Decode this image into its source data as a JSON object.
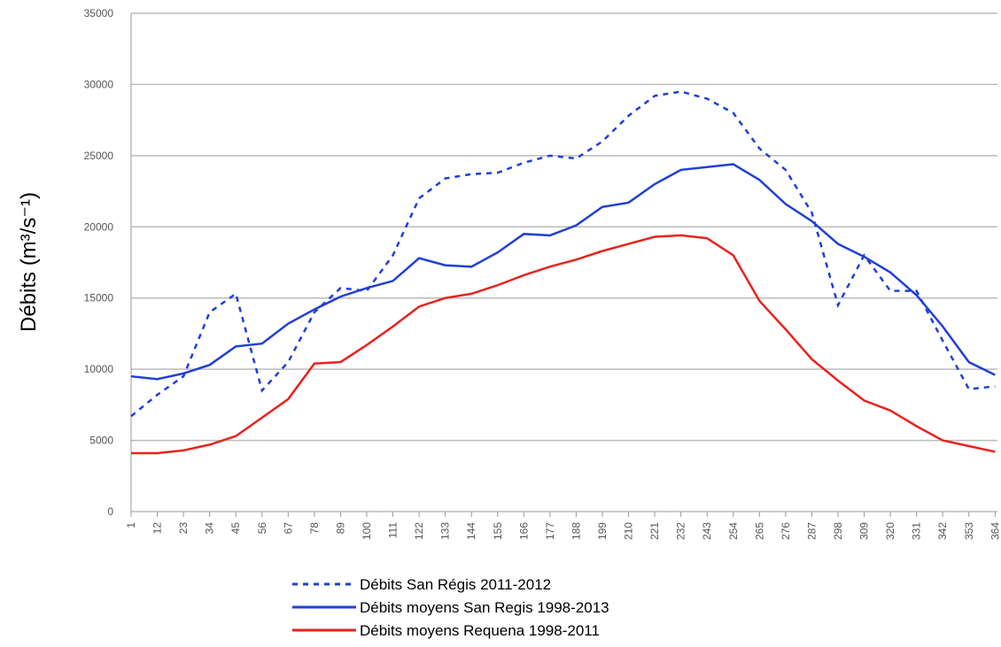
{
  "chart_data": {
    "type": "line",
    "y_label": "Débits (m³/s⁻¹)",
    "x": [
      1,
      12,
      23,
      34,
      45,
      56,
      67,
      78,
      89,
      100,
      111,
      122,
      133,
      144,
      155,
      166,
      177,
      188,
      199,
      210,
      221,
      232,
      243,
      254,
      265,
      276,
      287,
      298,
      309,
      320,
      331,
      342,
      353,
      364
    ],
    "series": [
      {
        "name": "Débits San Régis 2011-2012",
        "color": "#1f3fd6",
        "style": "dotted",
        "values": [
          6700,
          8200,
          9500,
          14000,
          15300,
          8500,
          10500,
          14000,
          15700,
          15500,
          18000,
          22000,
          23400,
          23700,
          23800,
          24500,
          25000,
          24800,
          26000,
          27800,
          29200,
          29500,
          29000,
          28000,
          25500,
          24000,
          21000,
          14500,
          18000,
          15500,
          15500,
          12000,
          8600,
          8800
        ]
      },
      {
        "name": "Débits moyens San Regis 1998-2013",
        "color": "#1f3fd6",
        "style": "solid",
        "values": [
          9500,
          9300,
          9700,
          10300,
          11600,
          11800,
          13200,
          14200,
          15100,
          15700,
          16200,
          17800,
          17300,
          17200,
          18200,
          19500,
          19400,
          20100,
          21400,
          21700,
          23000,
          24000,
          24200,
          24400,
          23300,
          21600,
          20400,
          18800,
          17900,
          16800,
          15200,
          13000,
          10500,
          9600
        ]
      },
      {
        "name": "Débits moyens Requena 1998-2011",
        "color": "#e8231e",
        "style": "solid",
        "values": [
          4100,
          4100,
          4300,
          4700,
          5300,
          6600,
          7900,
          10400,
          10500,
          11700,
          13000,
          14400,
          15000,
          15300,
          15900,
          16600,
          17200,
          17700,
          18300,
          18800,
          19300,
          19400,
          19200,
          18000,
          14800,
          12800,
          10700,
          9200,
          7800,
          7100,
          6000,
          5000,
          4600,
          4200
        ]
      }
    ],
    "xlim": [
      1,
      365
    ],
    "xticks": [
      1,
      12,
      23,
      34,
      45,
      56,
      67,
      78,
      89,
      100,
      111,
      122,
      133,
      144,
      155,
      166,
      177,
      188,
      199,
      210,
      221,
      232,
      243,
      254,
      265,
      276,
      287,
      298,
      309,
      320,
      331,
      342,
      353,
      364
    ],
    "ylim": [
      0,
      35000
    ],
    "yticks": [
      0,
      5000,
      10000,
      15000,
      20000,
      25000,
      30000,
      35000
    ],
    "grid": true
  }
}
